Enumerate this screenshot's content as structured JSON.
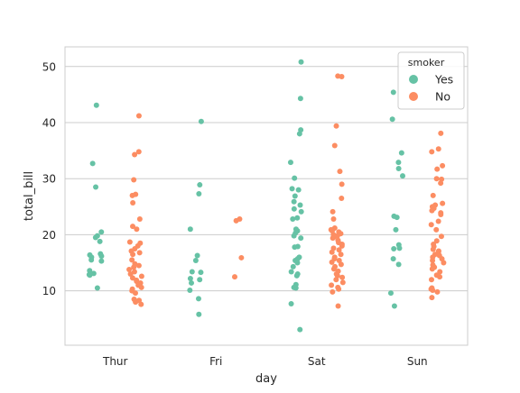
{
  "chart_data": {
    "type": "scatter",
    "subtype": "strip",
    "xlabel": "day",
    "ylabel": "total_bill",
    "ylim": [
      0.3,
      53.5
    ],
    "yticks": [
      10,
      20,
      30,
      40,
      50
    ],
    "categories": [
      "Thur",
      "Fri",
      "Sat",
      "Sun"
    ],
    "grid": "horizontal",
    "legend": {
      "title": "smoker",
      "placement": "top-right"
    },
    "series": [
      {
        "name": "Yes",
        "color": "#66c2a5",
        "points": [
          {
            "day": "Thur",
            "values": [
              43.1,
              32.7,
              28.5,
              20.5,
              19.8,
              19.5,
              18.8,
              16.6,
              16.4,
              16.2,
              16.0,
              15.5,
              15.3,
              13.6,
              13.1,
              12.9,
              12.8,
              10.5
            ]
          },
          {
            "day": "Fri",
            "values": [
              40.2,
              28.9,
              27.3,
              21.0,
              16.3,
              15.4,
              13.4,
              13.3,
              12.2,
              12.0,
              11.4,
              10.1,
              8.6,
              5.8
            ]
          },
          {
            "day": "Sat",
            "values": [
              50.8,
              44.3,
              38.7,
              38.0,
              32.9,
              30.1,
              28.2,
              28.0,
              26.9,
              25.9,
              25.3,
              24.6,
              24.1,
              23.0,
              22.8,
              21.0,
              20.7,
              20.3,
              19.8,
              19.4,
              17.9,
              17.8,
              16.0,
              15.7,
              15.4,
              15.0,
              14.3,
              13.4,
              13.0,
              12.7,
              11.1,
              10.6,
              10.5,
              7.7,
              3.1
            ]
          },
          {
            "day": "Sun",
            "values": [
              45.4,
              40.6,
              34.6,
              32.9,
              31.8,
              30.5,
              23.3,
              23.1,
              20.9,
              18.2,
              17.6,
              17.5,
              15.7,
              14.7,
              9.6,
              7.3
            ]
          }
        ]
      },
      {
        "name": "No",
        "color": "#fc8d62",
        "points": [
          {
            "day": "Thur",
            "values": [
              41.2,
              34.8,
              34.3,
              29.8,
              27.2,
              27.0,
              25.7,
              22.8,
              21.5,
              21.0,
              18.7,
              18.5,
              18.0,
              17.5,
              17.1,
              16.8,
              16.5,
              15.5,
              14.8,
              14.5,
              14.2,
              13.8,
              13.4,
              13.0,
              12.6,
              12.3,
              11.9,
              11.7,
              11.4,
              11.0,
              10.6,
              10.3,
              10.0,
              9.6,
              8.5,
              8.3,
              8.0,
              7.6
            ]
          },
          {
            "day": "Fri",
            "values": [
              22.8,
              22.5,
              15.9,
              12.5
            ]
          },
          {
            "day": "Sat",
            "values": [
              48.3,
              48.2,
              39.4,
              35.9,
              31.3,
              29.0,
              26.5,
              24.1,
              22.8,
              21.2,
              20.9,
              20.7,
              20.5,
              20.2,
              20.0,
              19.8,
              19.6,
              19.4,
              19.0,
              18.6,
              18.3,
              18.0,
              17.6,
              17.3,
              16.9,
              16.5,
              16.0,
              15.7,
              15.4,
              15.1,
              14.7,
              14.3,
              13.9,
              13.5,
              13.0,
              12.7,
              12.4,
              12.0,
              11.5,
              11.0,
              10.6,
              10.3,
              9.8,
              7.3
            ]
          },
          {
            "day": "Sun",
            "values": [
              38.1,
              35.3,
              34.8,
              32.3,
              31.7,
              30.0,
              29.9,
              29.2,
              27.0,
              25.6,
              25.3,
              25.0,
              24.7,
              24.3,
              23.9,
              23.6,
              22.4,
              21.8,
              20.9,
              19.7,
              18.9,
              18.3,
              17.9,
              17.4,
              17.1,
              16.9,
              16.5,
              16.3,
              16.0,
              15.7,
              15.4,
              15.0,
              14.6,
              14.2,
              13.9,
              13.4,
              12.8,
              12.5,
              12.0,
              10.5,
              10.3,
              10.1,
              9.8,
              8.8
            ]
          }
        ]
      }
    ]
  }
}
